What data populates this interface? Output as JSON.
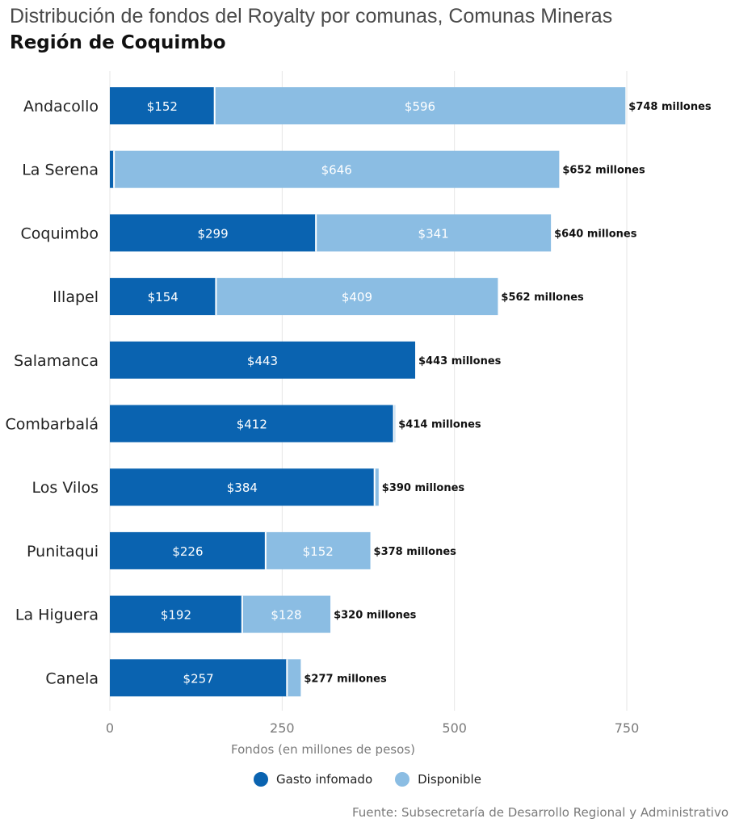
{
  "header": {
    "title": "Distribución de fondos del Royalty por comunas, Comunas Mineras",
    "subtitle": "Región de Coquimbo"
  },
  "source": "Fuente: Subsecretaría de Desarrollo Regional y Administrativo",
  "colors": {
    "gasto": "#0a63b0",
    "disponible": "#8bbde3",
    "grid": "#e6e6e6"
  },
  "chart_data": {
    "type": "bar",
    "orientation": "horizontal",
    "stacked": true,
    "categories": [
      "Andacollo",
      "La Serena",
      "Coquimbo",
      "Illapel",
      "Salamanca",
      "Combarbalá",
      "Los Vilos",
      "Punitaqui",
      "La Higuera",
      "Canela"
    ],
    "series": [
      {
        "name": "Gasto infomado",
        "values": [
          152,
          6,
          299,
          154,
          443,
          412,
          384,
          226,
          192,
          257
        ],
        "labels": [
          "$152",
          "",
          "$299",
          "$154",
          "$443",
          "$412",
          "$384",
          "$226",
          "$192",
          "$257"
        ]
      },
      {
        "name": "Disponible",
        "values": [
          596,
          646,
          341,
          409,
          0,
          2,
          6,
          152,
          128,
          20
        ],
        "labels": [
          "$596",
          "$646",
          "$341",
          "$409",
          "",
          "",
          "",
          "$152",
          "$128",
          ""
        ]
      }
    ],
    "totals": [
      "$748 millones",
      "$652 millones",
      "$640 millones",
      "$562 millones",
      "$443 millones",
      "$414 millones",
      "$390 millones",
      "$378 millones",
      "$320 millones",
      "$277 millones"
    ],
    "xlabel": "Fondos (en millones de pesos)",
    "xlim": [
      0,
      750
    ],
    "xticks": [
      0,
      250,
      500,
      750
    ],
    "xtick_labels": [
      "0",
      "250",
      "500",
      "750"
    ],
    "grid": true,
    "legend_position": "bottom"
  }
}
